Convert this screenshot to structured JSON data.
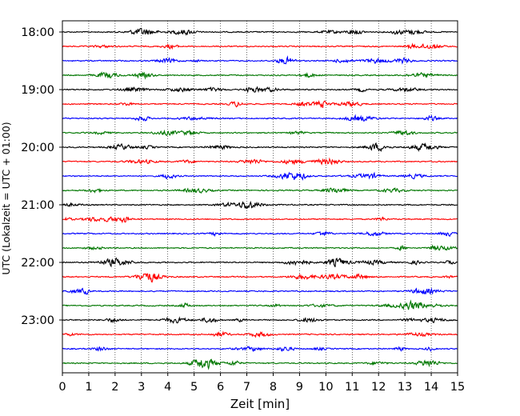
{
  "chart_data": {
    "type": "line",
    "title": "",
    "xlabel": "Zeit  [min]",
    "ylabel": "UTC (Lokalzeit = UTC + 01:00)",
    "xlim": [
      0,
      15
    ],
    "x_ticks": [
      "0",
      "1",
      "2",
      "3",
      "4",
      "5",
      "6",
      "7",
      "8",
      "9",
      "10",
      "11",
      "12",
      "13",
      "14",
      "15"
    ],
    "y_tick_labels": [
      "18:00",
      "19:00",
      "20:00",
      "21:00",
      "22:00",
      "23:00"
    ],
    "grid": "vertical-dotted",
    "trace_interval_min": 15,
    "start_time": "18:00",
    "trace_count": 24,
    "trace_colors": [
      "#000000",
      "#ff0000",
      "#0000ff",
      "#007700"
    ]
  }
}
